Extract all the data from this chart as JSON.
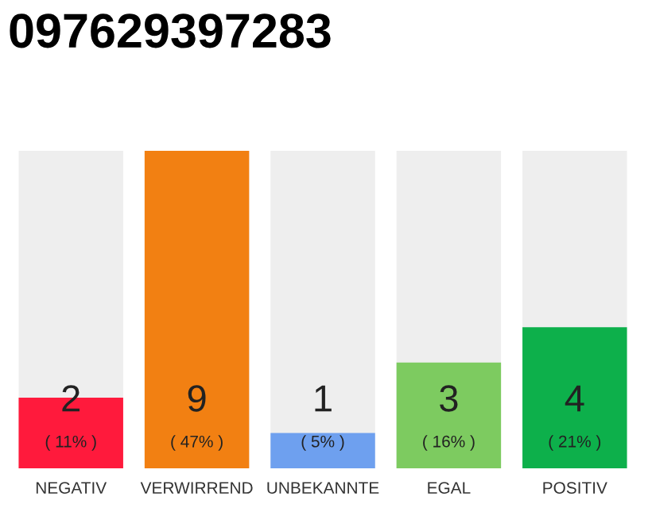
{
  "chart_data": {
    "type": "bar",
    "title": "097629397283",
    "categories": [
      "NEGATIV",
      "VERWIRREND",
      "UNBEKANNTE",
      "EGAL",
      "POSITIV"
    ],
    "values": [
      2,
      9,
      1,
      3,
      4
    ],
    "colors": [
      "#ff1a3c",
      "#f28012",
      "#6ea0ef",
      "#7dcb60",
      "#0db04b"
    ],
    "data_labels": true,
    "annotations": [
      "( 11% )",
      "( 47% )",
      "( 5% )",
      "( 16% )",
      "( 21% )"
    ],
    "grid": false,
    "legend": false
  }
}
